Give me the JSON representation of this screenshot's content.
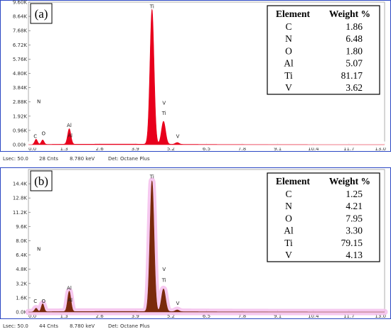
{
  "chart_data": [
    {
      "type": "area",
      "panel_label": "(a)",
      "xlim": [
        0,
        13.0
      ],
      "x_ticks": [
        "0.0",
        "1.3",
        "2.6",
        "3.9",
        "5.2",
        "6.5",
        "7.8",
        "9.1",
        "10.4",
        "11.7",
        "13.0"
      ],
      "ylim": [
        0,
        9600
      ],
      "y_ticks": [
        "0.00K",
        "0.96K",
        "1.92K",
        "2.88K",
        "3.84K",
        "4.80K",
        "5.76K",
        "6.72K",
        "7.68K",
        "8.64K",
        "9.60K"
      ],
      "spectrum_color": "#e8001c",
      "halo_color": "#ffffff",
      "peaks": [
        {
          "label": "C",
          "x": 0.28,
          "height": 350,
          "width": 0.05
        },
        {
          "label": "N",
          "x": 0.39,
          "height": 0,
          "width": 0.05
        },
        {
          "label": "O",
          "x": 0.52,
          "height": 300,
          "width": 0.05
        },
        {
          "label": "Al",
          "x": 1.49,
          "height": 1050,
          "width": 0.06
        },
        {
          "label": "Ti",
          "x": 4.51,
          "height": 9100,
          "width": 0.075
        },
        {
          "label": "Ti",
          "x": 4.93,
          "height": 1550,
          "width": 0.075
        },
        {
          "label": "V",
          "x": 4.95,
          "height": 0,
          "width": 0.07
        },
        {
          "label": "V",
          "x": 5.43,
          "height": 120,
          "width": 0.07
        }
      ],
      "peak_labels": [
        {
          "text": "Ti",
          "x": 4.51,
          "y": 9200
        },
        {
          "text": "V",
          "x": 4.95,
          "y": 2700
        },
        {
          "text": "Ti",
          "x": 4.95,
          "y": 2000
        },
        {
          "text": "V",
          "x": 5.45,
          "y": 450
        },
        {
          "text": "Al",
          "x": 1.49,
          "y": 1200
        },
        {
          "text": "Al",
          "x": 1.52,
          "y": 500
        },
        {
          "text": "N",
          "x": 0.38,
          "y": 2800
        },
        {
          "text": "C",
          "x": 0.25,
          "y": 450
        },
        {
          "text": "O",
          "x": 0.55,
          "y": 650
        }
      ],
      "table": {
        "headers": [
          "Element",
          "Weight %"
        ],
        "rows": [
          [
            "C",
            "1.86"
          ],
          [
            "N",
            "6.48"
          ],
          [
            "O",
            "1.80"
          ],
          [
            "Al",
            "5.07"
          ],
          [
            "Ti",
            "81.17"
          ],
          [
            "V",
            "3.62"
          ]
        ]
      },
      "status": {
        "lsec": "Lsec: 50.0",
        "cnts": "28 Cnts",
        "kev": "8.780 keV",
        "det": "Det: Octane Plus"
      }
    },
    {
      "type": "area",
      "panel_label": "(b)",
      "xlim": [
        0,
        13.0
      ],
      "x_ticks": [
        "0.0",
        "1.3",
        "2.6",
        "3.9",
        "5.2",
        "6.5",
        "7.8",
        "9.1",
        "10.4",
        "11.7",
        "13.0"
      ],
      "ylim": [
        0,
        16000
      ],
      "y_ticks": [
        "0.0K",
        "1.6K",
        "3.2K",
        "4.8K",
        "6.4K",
        "8.0K",
        "9.6K",
        "11.2K",
        "12.8K",
        "14.4K"
      ],
      "spectrum_color": "#7a2a0d",
      "halo_color": "#f6c3ee",
      "peaks": [
        {
          "label": "C",
          "x": 0.28,
          "height": 400,
          "width": 0.05
        },
        {
          "label": "N",
          "x": 0.39,
          "height": 0,
          "width": 0.05
        },
        {
          "label": "O",
          "x": 0.52,
          "height": 900,
          "width": 0.05
        },
        {
          "label": "Al",
          "x": 1.49,
          "height": 2300,
          "width": 0.06
        },
        {
          "label": "Ti",
          "x": 4.51,
          "height": 14700,
          "width": 0.075
        },
        {
          "label": "Ti",
          "x": 4.93,
          "height": 2550,
          "width": 0.075
        },
        {
          "label": "V",
          "x": 4.95,
          "height": 0,
          "width": 0.07
        },
        {
          "label": "V",
          "x": 5.43,
          "height": 200,
          "width": 0.07
        }
      ],
      "peak_labels": [
        {
          "text": "Ti",
          "x": 4.51,
          "y": 15000
        },
        {
          "text": "V",
          "x": 4.95,
          "y": 4600
        },
        {
          "text": "Ti",
          "x": 4.95,
          "y": 3400
        },
        {
          "text": "V",
          "x": 5.45,
          "y": 800
        },
        {
          "text": "Al",
          "x": 1.49,
          "y": 2500
        },
        {
          "text": "Al",
          "x": 1.52,
          "y": 1150
        },
        {
          "text": "N",
          "x": 0.38,
          "y": 6900
        },
        {
          "text": "C",
          "x": 0.25,
          "y": 1050
        },
        {
          "text": "O",
          "x": 0.55,
          "y": 1050
        }
      ],
      "table": {
        "headers": [
          "Element",
          "Weight %"
        ],
        "rows": [
          [
            "C",
            "1.25"
          ],
          [
            "N",
            "4.21"
          ],
          [
            "O",
            "7.95"
          ],
          [
            "Al",
            "3.30"
          ],
          [
            "Ti",
            "79.15"
          ],
          [
            "V",
            "4.13"
          ]
        ]
      },
      "status": {
        "lsec": "Lsec: 50.0",
        "cnts": "44 Cnts",
        "kev": "8.780 keV",
        "det": "Det: Octane Plus"
      }
    }
  ]
}
